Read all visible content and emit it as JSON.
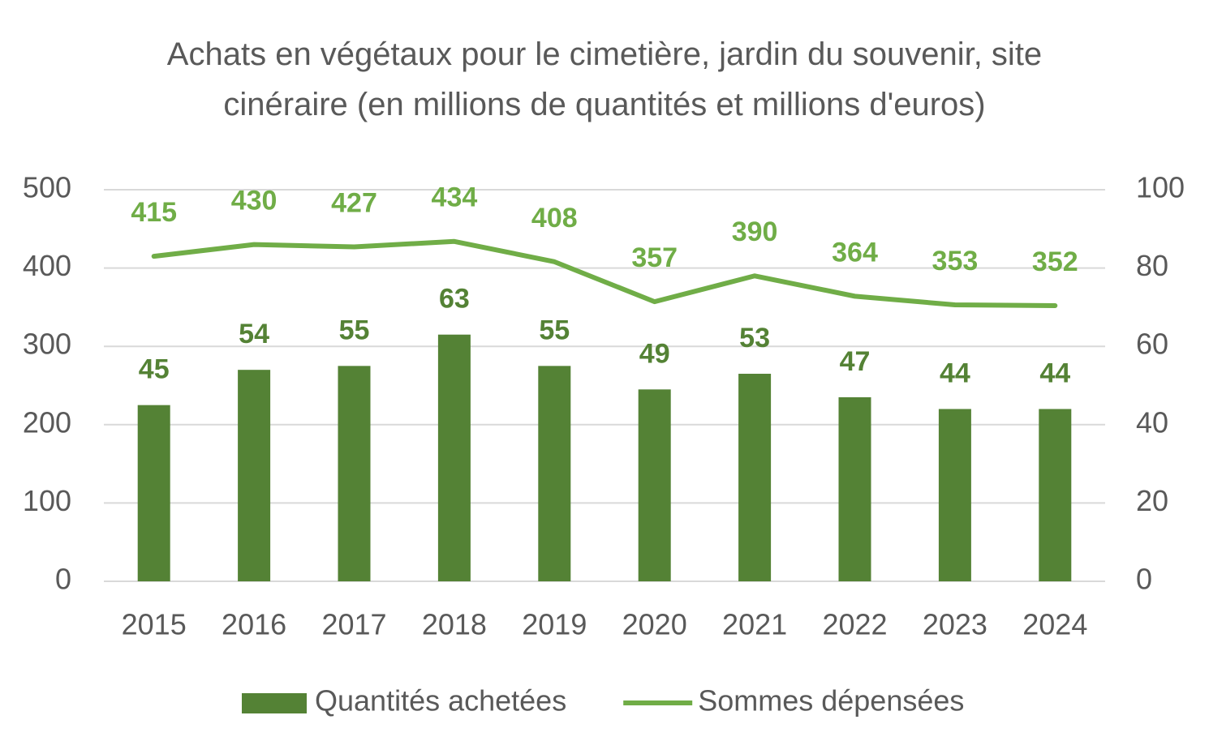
{
  "chart_data": {
    "type": "bar-line",
    "title": "Achats en végétaux pour le cimetière, jardin du souvenir, site cinéraire (en millions de quantités et millions d'euros)",
    "categories": [
      "2015",
      "2016",
      "2017",
      "2018",
      "2019",
      "2020",
      "2021",
      "2022",
      "2023",
      "2024"
    ],
    "series": [
      {
        "name": "Quantités achetées",
        "type": "bar",
        "axis": "y2",
        "color": "#548235",
        "values": [
          45,
          54,
          55,
          63,
          55,
          49,
          53,
          47,
          44,
          44
        ]
      },
      {
        "name": "Sommes dépensées",
        "type": "line",
        "axis": "y",
        "color": "#70ad47",
        "values": [
          415,
          430,
          427,
          434,
          408,
          357,
          390,
          364,
          353,
          352
        ]
      }
    ],
    "ylim": [
      0,
      500
    ],
    "yticks": [
      0,
      100,
      200,
      300,
      400,
      500
    ],
    "y2lim": [
      0,
      100
    ],
    "y2ticks": [
      0,
      20,
      40,
      60,
      80,
      100
    ],
    "grid": true,
    "legend": "bottom"
  }
}
